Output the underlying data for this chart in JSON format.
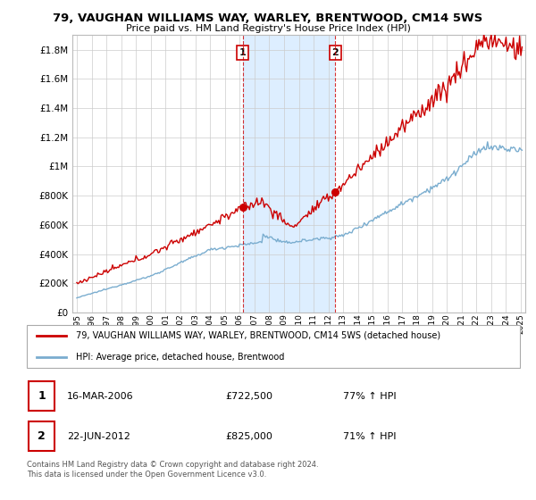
{
  "title": "79, VAUGHAN WILLIAMS WAY, WARLEY, BRENTWOOD, CM14 5WS",
  "subtitle": "Price paid vs. HM Land Registry's House Price Index (HPI)",
  "legend_line1": "79, VAUGHAN WILLIAMS WAY, WARLEY, BRENTWOOD, CM14 5WS (detached house)",
  "legend_line2": "HPI: Average price, detached house, Brentwood",
  "marker1_date": "16-MAR-2006",
  "marker1_price": "£722,500",
  "marker1_hpi": "77% ↑ HPI",
  "marker2_date": "22-JUN-2012",
  "marker2_price": "£825,000",
  "marker2_hpi": "71% ↑ HPI",
  "footer": "Contains HM Land Registry data © Crown copyright and database right 2024.\nThis data is licensed under the Open Government Licence v3.0.",
  "red_color": "#cc0000",
  "blue_color": "#7aadcf",
  "shaded_color": "#ddeeff",
  "ylim_max": 1900000,
  "ylim_min": 0,
  "marker1_x_year": 2006.2,
  "marker2_x_year": 2012.47,
  "xmin": 1994.7,
  "xmax": 2025.3
}
